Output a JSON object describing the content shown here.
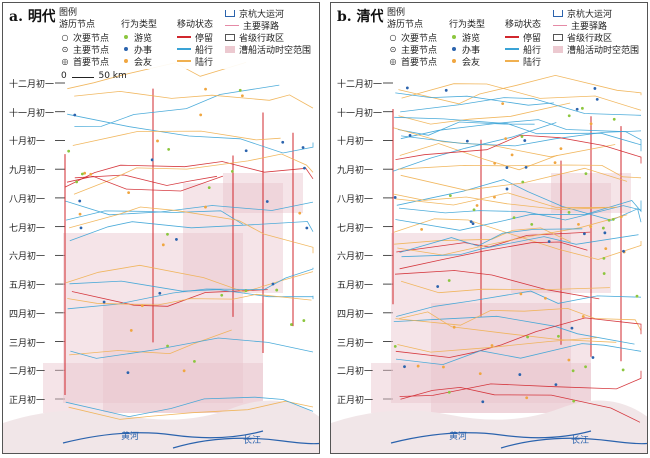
{
  "panels": [
    {
      "id": "a",
      "title": "a. 明代",
      "legend": {
        "title": "图例",
        "nodes": {
          "heading": "游历节点",
          "items": [
            "次要节点",
            "主要节点",
            "首要节点"
          ]
        },
        "behaviors": {
          "heading": "行为类型",
          "items": [
            {
              "label": "游览",
              "color": "#8cc63e"
            },
            {
              "label": "办事",
              "color": "#2b63ad"
            },
            {
              "label": "会友",
              "color": "#f0a640"
            }
          ]
        },
        "movement": {
          "heading": "移动状态",
          "items": [
            {
              "label": "停留",
              "color": "#d1272d"
            },
            {
              "label": "船行",
              "color": "#3aa3d6"
            },
            {
              "label": "陆行",
              "color": "#f0b050"
            }
          ]
        },
        "layers": [
          {
            "label": "京杭大运河",
            "type": "canal"
          },
          {
            "label": "主要驿路",
            "type": "road"
          },
          {
            "label": "省级行政区",
            "type": "province"
          },
          {
            "label": "漕船活动时空范围",
            "type": "range"
          }
        ]
      },
      "scale_label": "50 km",
      "scale_zero": "0",
      "rivers": [
        "黄河",
        "长江"
      ],
      "months": [
        "十二月初一",
        "十一月初一",
        "十月初一",
        "九月初一",
        "八月初一",
        "七月初一",
        "六月初一",
        "五月初一",
        "四月初一",
        "三月初一",
        "二月初一",
        "正月初一"
      ]
    },
    {
      "id": "b",
      "title": "b. 清代",
      "legend": {
        "title": "图例",
        "nodes": {
          "heading": "游历节点",
          "items": [
            "次要节点",
            "主要节点",
            "首要节点"
          ]
        },
        "behaviors": {
          "heading": "行为类型",
          "items": [
            {
              "label": "游览",
              "color": "#8cc63e"
            },
            {
              "label": "办事",
              "color": "#2b63ad"
            },
            {
              "label": "会友",
              "color": "#f0a640"
            }
          ]
        },
        "movement": {
          "heading": "移动状态",
          "items": [
            {
              "label": "停留",
              "color": "#d1272d"
            },
            {
              "label": "船行",
              "color": "#3aa3d6"
            },
            {
              "label": "陆行",
              "color": "#f0b050"
            }
          ]
        },
        "layers": [
          {
            "label": "京杭大运河",
            "type": "canal"
          },
          {
            "label": "主要驿路",
            "type": "road"
          },
          {
            "label": "省级行政区",
            "type": "province"
          },
          {
            "label": "漕船活动时空范围",
            "type": "range"
          }
        ]
      },
      "scale_label": "",
      "scale_zero": "",
      "rivers": [
        "黄河",
        "长江"
      ],
      "months": [
        "十二月初一",
        "十一月初一",
        "十月初一",
        "九月初一",
        "八月初一",
        "七月初一",
        "六月初一",
        "五月初一",
        "四月初一",
        "三月初一",
        "二月初一",
        "正月初一"
      ]
    }
  ],
  "colors": {
    "stay": "#d1272d",
    "boat": "#3aa3d6",
    "land": "#f0b050",
    "sight": "#8cc63e",
    "business": "#2b63ad",
    "friend": "#f0a640",
    "canal": "#2b63ad",
    "road": "#e58aa6",
    "range": "#e8c4cc"
  }
}
